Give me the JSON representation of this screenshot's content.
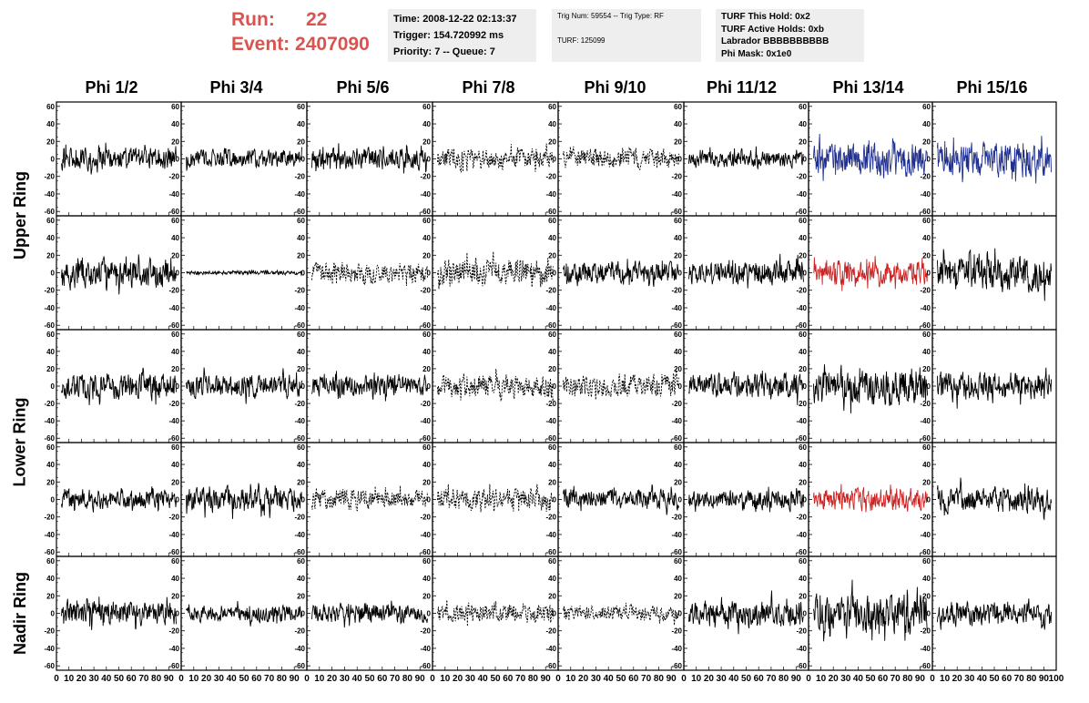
{
  "run": {
    "run_label": "Run:",
    "run_value": "22",
    "event_label": "Event:",
    "event_value": "2407090"
  },
  "time_box": {
    "time": "Time: 2008-12-22 02:13:37",
    "trigger": "Trigger: 154.720992 ms",
    "priority": "Priority: 7 -- Queue: 7"
  },
  "trig_box": {
    "trig": "Trig Num: 59554 -- Trig Type: RF",
    "turf": "TURF: 125099"
  },
  "turf_box": {
    "hold": "TURF This Hold: 0x2",
    "active": "TURF Active Holds: 0xb",
    "labrador": "Labrador BBBBBBBBBB",
    "mask": "Phi Mask: 0x1e0"
  },
  "phi_headers": [
    "Phi 1/2",
    "Phi 3/4",
    "Phi 5/6",
    "Phi 7/8",
    "Phi 9/10",
    "Phi 11/12",
    "Phi 13/14",
    "Phi 15/16"
  ],
  "ring_labels": [
    "Upper Ring",
    "Lower Ring",
    "Nadir Ring"
  ],
  "axes": {
    "y_ticks": [
      "60",
      "40",
      "20",
      "0",
      "-20",
      "-40",
      "-60"
    ],
    "y_ticks_nadir": [
      "60",
      "40",
      "20",
      "0",
      "-20",
      "-40",
      "-60"
    ],
    "x_ticks": [
      "0",
      "10",
      "20",
      "30",
      "40",
      "50",
      "60",
      "70",
      "80",
      "90",
      "100"
    ],
    "ylim": [
      -65,
      65
    ],
    "xlim": [
      0,
      100
    ]
  },
  "colors": {
    "run_text": "#d9534f",
    "blue_trace": "#1f2f8f",
    "red_trace": "#cc2222",
    "black_trace": "#000000",
    "info_bg": "#eeeeee"
  },
  "chart_data": {
    "type": "line",
    "xlim": [
      0,
      100
    ],
    "ylim": [
      -65,
      65
    ],
    "panels": [
      {
        "row": 0,
        "col": 0,
        "style": "solid",
        "color": "black",
        "amp": 16
      },
      {
        "row": 0,
        "col": 1,
        "style": "solid",
        "color": "black",
        "amp": 13
      },
      {
        "row": 0,
        "col": 2,
        "style": "solid",
        "color": "black",
        "amp": 16
      },
      {
        "row": 0,
        "col": 3,
        "style": "dashed",
        "color": "black",
        "amp": 14
      },
      {
        "row": 0,
        "col": 4,
        "style": "dashed",
        "color": "black",
        "amp": 14
      },
      {
        "row": 0,
        "col": 5,
        "style": "solid",
        "color": "black",
        "amp": 12
      },
      {
        "row": 0,
        "col": 6,
        "style": "solid",
        "color": "blue",
        "amp": 24
      },
      {
        "row": 0,
        "col": 7,
        "style": "solid",
        "color": "blue",
        "amp": 24
      },
      {
        "row": 1,
        "col": 0,
        "style": "solid",
        "color": "black",
        "amp": 20
      },
      {
        "row": 1,
        "col": 1,
        "style": "solid",
        "color": "black",
        "amp": 3
      },
      {
        "row": 1,
        "col": 2,
        "style": "dashed",
        "color": "black",
        "amp": 14
      },
      {
        "row": 1,
        "col": 3,
        "style": "dashed",
        "color": "black",
        "amp": 20
      },
      {
        "row": 1,
        "col": 4,
        "style": "solid",
        "color": "black",
        "amp": 16
      },
      {
        "row": 1,
        "col": 5,
        "style": "solid",
        "color": "black",
        "amp": 17
      },
      {
        "row": 1,
        "col": 6,
        "style": "solid",
        "color": "red",
        "amp": 17
      },
      {
        "row": 1,
        "col": 7,
        "style": "solid",
        "color": "black",
        "amp": 26
      },
      {
        "row": 2,
        "col": 0,
        "style": "solid",
        "color": "black",
        "amp": 18
      },
      {
        "row": 2,
        "col": 1,
        "style": "solid",
        "color": "black",
        "amp": 17
      },
      {
        "row": 2,
        "col": 2,
        "style": "solid",
        "color": "black",
        "amp": 16
      },
      {
        "row": 2,
        "col": 3,
        "style": "dashed",
        "color": "black",
        "amp": 18
      },
      {
        "row": 2,
        "col": 4,
        "style": "dashed",
        "color": "black",
        "amp": 16
      },
      {
        "row": 2,
        "col": 5,
        "style": "solid",
        "color": "black",
        "amp": 17
      },
      {
        "row": 2,
        "col": 6,
        "style": "solid",
        "color": "black",
        "amp": 28
      },
      {
        "row": 2,
        "col": 7,
        "style": "solid",
        "color": "black",
        "amp": 20
      },
      {
        "row": 3,
        "col": 0,
        "style": "solid",
        "color": "black",
        "amp": 14
      },
      {
        "row": 3,
        "col": 1,
        "style": "solid",
        "color": "black",
        "amp": 18
      },
      {
        "row": 3,
        "col": 2,
        "style": "dashed",
        "color": "black",
        "amp": 14
      },
      {
        "row": 3,
        "col": 3,
        "style": "dashed",
        "color": "black",
        "amp": 16
      },
      {
        "row": 3,
        "col": 4,
        "style": "solid",
        "color": "black",
        "amp": 14
      },
      {
        "row": 3,
        "col": 5,
        "style": "solid",
        "color": "black",
        "amp": 14
      },
      {
        "row": 3,
        "col": 6,
        "style": "solid",
        "color": "red",
        "amp": 16
      },
      {
        "row": 3,
        "col": 7,
        "style": "solid",
        "color": "black",
        "amp": 18
      },
      {
        "row": 4,
        "col": 0,
        "style": "solid",
        "color": "black",
        "amp": 18
      },
      {
        "row": 4,
        "col": 1,
        "style": "solid",
        "color": "black",
        "amp": 12
      },
      {
        "row": 4,
        "col": 2,
        "style": "solid",
        "color": "black",
        "amp": 14
      },
      {
        "row": 4,
        "col": 3,
        "style": "dashed",
        "color": "black",
        "amp": 14
      },
      {
        "row": 4,
        "col": 4,
        "style": "dashed",
        "color": "black",
        "amp": 11
      },
      {
        "row": 4,
        "col": 5,
        "style": "solid",
        "color": "black",
        "amp": 18
      },
      {
        "row": 4,
        "col": 6,
        "style": "solid",
        "color": "black",
        "amp": 28
      },
      {
        "row": 4,
        "col": 7,
        "style": "solid",
        "color": "black",
        "amp": 16
      }
    ]
  }
}
